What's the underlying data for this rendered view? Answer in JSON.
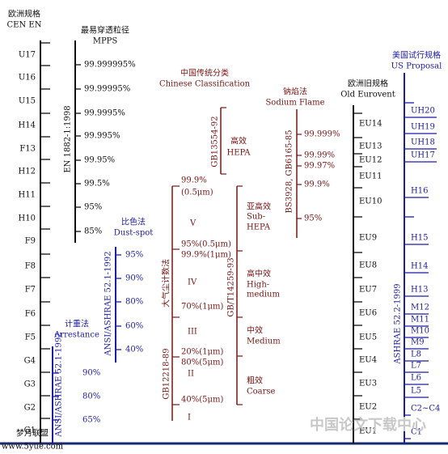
{
  "en": {
    "title": "欧洲规格",
    "subtitle": "CEN EN",
    "classes": [
      "U17",
      "U16",
      "U15",
      "H14",
      "F13",
      "H12",
      "H11",
      "H10",
      "F9",
      "F8",
      "F7",
      "F6",
      "F5",
      "G4",
      "G3",
      "G2",
      "G1"
    ]
  },
  "mpps": {
    "title": "最易穿透粒径",
    "subtitle": "MPPS",
    "standard": "EN 1882-1:1998",
    "values": [
      "99.999995%",
      "99.99995%",
      "99.9995%",
      "99.995%",
      "99.95%",
      "99.5%",
      "95%",
      "85%"
    ]
  },
  "dust_spot": {
    "title": "比色法",
    "subtitle": "Dust-spot",
    "standard": "ANSI/ASHRAE 52.1-1992",
    "values": [
      "95%",
      "90%",
      "80%",
      "60%",
      "40%"
    ]
  },
  "arrestance": {
    "title": "计重法",
    "subtitle": "Arrestance",
    "standard": "ANSI/ASHRAE 52.1-1992",
    "values": [
      "90%",
      "80%",
      "65%"
    ]
  },
  "chinese": {
    "title": "中国传统分类",
    "subtitle": "Chinese Classification",
    "counting": {
      "method": "大气尘计数法",
      "standard": "GB12218-89",
      "labels": [
        "99.9%",
        "(0.5μm)",
        "V",
        "95%(0.5μm)",
        "99.9%(1μm)",
        "IV",
        "70%(1μm)",
        "III",
        "20%(1μm)",
        "80%(5μm)",
        "II",
        "40%(5μm)",
        "I"
      ]
    },
    "hepa": {
      "standard": "GB13554-92",
      "labels": [
        "高效",
        "HEPA"
      ]
    },
    "general": {
      "standard": "GB/T14259-93",
      "labels": [
        "亚高效",
        "Sub-",
        "HEPA",
        "高中效",
        "High-",
        "medium",
        "中效",
        "Medium",
        "粗效",
        "Coarse"
      ]
    }
  },
  "sodium_flame": {
    "title": "钠焰法",
    "subtitle": "Sodium Flame",
    "standard": "BS3928, GB6165-85",
    "values": [
      "99.999%",
      "99.99%",
      "99.97%",
      "99.9%",
      "95%"
    ]
  },
  "eurovent": {
    "title": "欧洲旧规格",
    "subtitle": "Old Eurovent",
    "classes": [
      "EU14",
      "EU13",
      "EU12",
      "EU11",
      "EU10",
      "EU9",
      "EU8",
      "EU7",
      "EU6",
      "EU5",
      "EU4",
      "EU3",
      "EU2",
      "EU1"
    ]
  },
  "us": {
    "title": "美国试行规格",
    "subtitle": "US Proposal",
    "standard": "ASHRAE 52.2-1999",
    "classes": [
      "UH20",
      "UH19",
      "UH18",
      "UH17",
      "H16",
      "H15",
      "H14",
      "H13",
      "M12",
      "M11",
      "M10",
      "M9",
      "L8",
      "L7",
      "L6",
      "L5",
      "C2~C4",
      "C1"
    ]
  },
  "watermarks": [
    "中国论文下载中心",
    "梦月联盟",
    "www.5yue.com"
  ]
}
